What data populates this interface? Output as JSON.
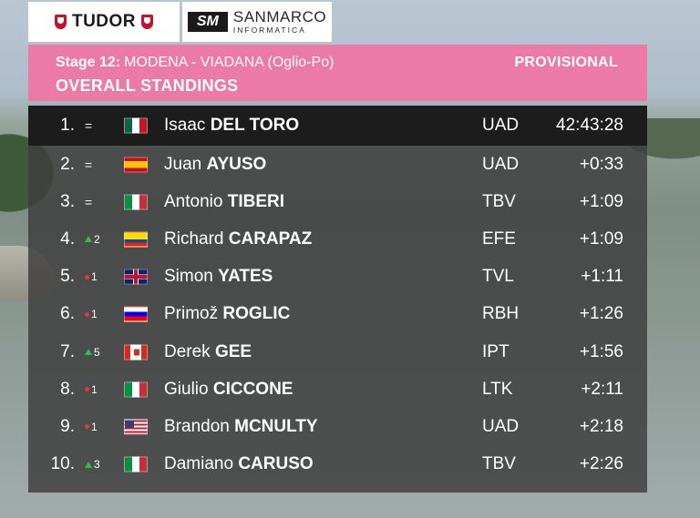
{
  "sponsors": {
    "tudor": "TUDOR",
    "sanmarco_logo": "SM",
    "sanmarco_brand": "SANMARCO",
    "sanmarco_sub": "INFORMATICA"
  },
  "header": {
    "stage_label": "Stage 12:",
    "stage_route": "MODENA - VIADANA (Oglio-Po)",
    "status": "PROVISIONAL",
    "title": "OVERALL STANDINGS"
  },
  "standings": [
    {
      "pos": "1.",
      "move": "=",
      "trend": "same",
      "flag": "mx",
      "first": "Isaac",
      "last": "DEL TORO",
      "team": "UAD",
      "time": "42:43:28"
    },
    {
      "pos": "2.",
      "move": "=",
      "trend": "same",
      "flag": "es",
      "first": "Juan",
      "last": "AYUSO",
      "team": "UAD",
      "time": "+0:33"
    },
    {
      "pos": "3.",
      "move": "=",
      "trend": "same",
      "flag": "it",
      "first": "Antonio",
      "last": "TIBERI",
      "team": "TBV",
      "time": "+1:09"
    },
    {
      "pos": "4.",
      "move": "2",
      "trend": "up",
      "flag": "ec",
      "first": "Richard",
      "last": "CARAPAZ",
      "team": "EFE",
      "time": "+1:09"
    },
    {
      "pos": "5.",
      "move": "1",
      "trend": "down",
      "flag": "gb",
      "first": "Simon",
      "last": "YATES",
      "team": "TVL",
      "time": "+1:11"
    },
    {
      "pos": "6.",
      "move": "1",
      "trend": "down",
      "flag": "si",
      "first": "Primož",
      "last": "ROGLIC",
      "team": "RBH",
      "time": "+1:26"
    },
    {
      "pos": "7.",
      "move": "5",
      "trend": "up",
      "flag": "ca",
      "first": "Derek",
      "last": "GEE",
      "team": "IPT",
      "time": "+1:56"
    },
    {
      "pos": "8.",
      "move": "1",
      "trend": "down",
      "flag": "it",
      "first": "Giulio",
      "last": "CICCONE",
      "team": "LTK",
      "time": "+2:11"
    },
    {
      "pos": "9.",
      "move": "1",
      "trend": "down",
      "flag": "us",
      "first": "Brandon",
      "last": "MCNULTY",
      "team": "UAD",
      "time": "+2:18"
    },
    {
      "pos": "10.",
      "move": "3",
      "trend": "up",
      "flag": "it",
      "first": "Damiano",
      "last": "CARUSO",
      "team": "TBV",
      "time": "+2:26"
    }
  ],
  "colors": {
    "header_pink": "#ec7aa6",
    "up_green": "#2fbf4a",
    "down_red": "#e23a3a"
  }
}
